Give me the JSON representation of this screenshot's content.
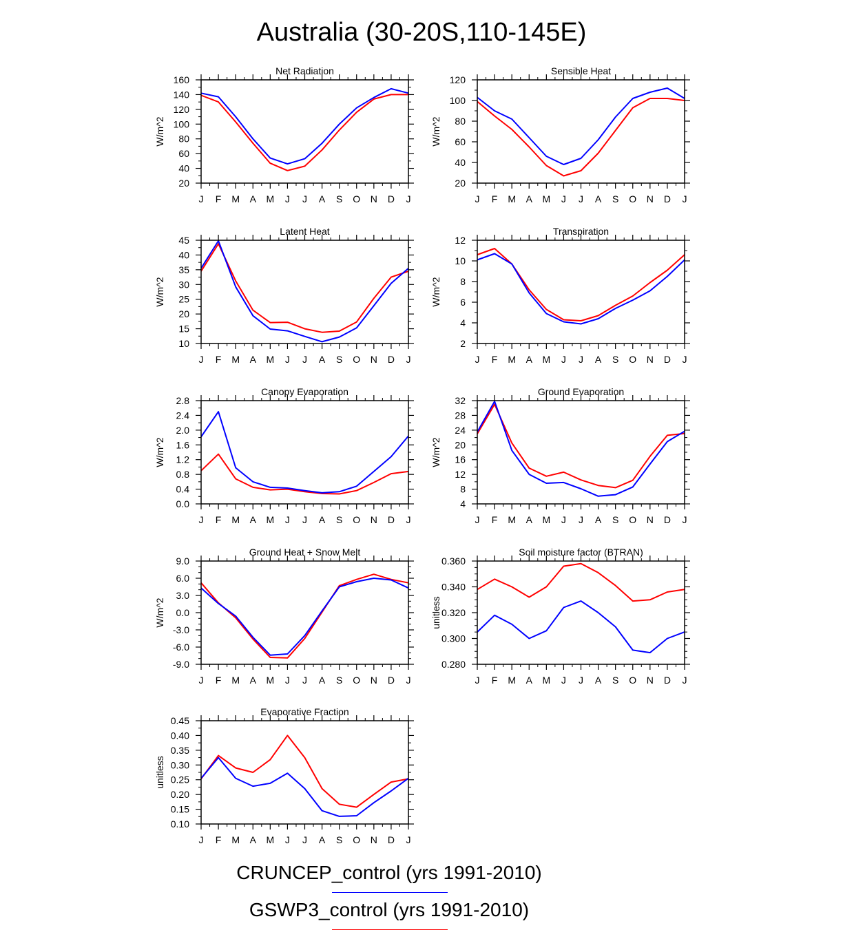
{
  "figure": {
    "title": "Australia (30-20S,110-145E)"
  },
  "legend": [
    {
      "label": "CRUNCEP_control (yrs 1991-2010)",
      "color": "#0000ff"
    },
    {
      "label": "GSWP3_control (yrs 1991-2010)",
      "color": "#ff0000"
    }
  ],
  "chart_data": [
    {
      "type": "line",
      "title": "Net Radiation",
      "ylabel": "W/m^2",
      "categories": [
        "J",
        "F",
        "M",
        "A",
        "M",
        "J",
        "J",
        "A",
        "S",
        "O",
        "N",
        "D",
        "J"
      ],
      "ylim": [
        20,
        160
      ],
      "yticks": [
        "20",
        "40",
        "60",
        "80",
        "100",
        "120",
        "140",
        "160"
      ],
      "yminor": 1,
      "series": [
        {
          "name": "CRUNCEP_control",
          "color": "#0000ff",
          "values": [
            142,
            137,
            110,
            80,
            54,
            46,
            53,
            74,
            100,
            122,
            136,
            148,
            142
          ]
        },
        {
          "name": "GSWP3_control",
          "color": "#ff0000",
          "values": [
            139,
            130,
            103,
            74,
            47,
            37,
            43,
            65,
            92,
            116,
            134,
            140,
            140
          ]
        }
      ]
    },
    {
      "type": "line",
      "title": "Sensible Heat",
      "ylabel": "W/m^2",
      "categories": [
        "J",
        "F",
        "M",
        "A",
        "M",
        "J",
        "J",
        "A",
        "S",
        "O",
        "N",
        "D",
        "J"
      ],
      "ylim": [
        20,
        120
      ],
      "yticks": [
        "20",
        "40",
        "60",
        "80",
        "100",
        "120"
      ],
      "yminor": 1,
      "series": [
        {
          "name": "CRUNCEP_control",
          "color": "#0000ff",
          "values": [
            103,
            90,
            82,
            64,
            46,
            38,
            44,
            62,
            84,
            102,
            108,
            112,
            102
          ]
        },
        {
          "name": "GSWP3_control",
          "color": "#ff0000",
          "values": [
            99,
            85,
            72,
            55,
            37,
            27,
            32,
            49,
            71,
            93,
            102,
            102,
            100
          ]
        }
      ]
    },
    {
      "type": "line",
      "title": "Latent Heat",
      "ylabel": "W/m^2",
      "categories": [
        "J",
        "F",
        "M",
        "A",
        "M",
        "J",
        "J",
        "A",
        "S",
        "O",
        "N",
        "D",
        "J"
      ],
      "ylim": [
        10,
        45
      ],
      "yticks": [
        "10",
        "15",
        "20",
        "25",
        "30",
        "35",
        "40",
        "45"
      ],
      "yminor": 1,
      "series": [
        {
          "name": "CRUNCEP_control",
          "color": "#0000ff",
          "values": [
            35.5,
            44.8,
            29.2,
            19.4,
            14.9,
            14.3,
            12.4,
            10.6,
            12.2,
            15.3,
            22.8,
            30.4,
            35.5
          ]
        },
        {
          "name": "GSWP3_control",
          "color": "#ff0000",
          "values": [
            34.5,
            43.8,
            31.2,
            21.3,
            17.1,
            17.2,
            15.0,
            13.8,
            14.2,
            17.3,
            25.3,
            32.5,
            34.5
          ]
        }
      ]
    },
    {
      "type": "line",
      "title": "Transpiration",
      "ylabel": "W/m^2",
      "categories": [
        "J",
        "F",
        "M",
        "A",
        "M",
        "J",
        "J",
        "A",
        "S",
        "O",
        "N",
        "D",
        "J"
      ],
      "ylim": [
        2,
        12
      ],
      "yticks": [
        "2",
        "4",
        "6",
        "8",
        "10",
        "12"
      ],
      "yminor": 1,
      "series": [
        {
          "name": "CRUNCEP_control",
          "color": "#0000ff",
          "values": [
            10.1,
            10.7,
            9.7,
            6.9,
            4.9,
            4.1,
            3.9,
            4.4,
            5.4,
            6.2,
            7.1,
            8.5,
            10.1
          ]
        },
        {
          "name": "GSWP3_control",
          "color": "#ff0000",
          "values": [
            10.6,
            11.2,
            9.7,
            7.2,
            5.3,
            4.3,
            4.2,
            4.7,
            5.7,
            6.6,
            7.9,
            9.1,
            10.6
          ]
        }
      ]
    },
    {
      "type": "line",
      "title": "Canopy Evaporation",
      "ylabel": "W/m^2",
      "categories": [
        "J",
        "F",
        "M",
        "A",
        "M",
        "J",
        "J",
        "A",
        "S",
        "O",
        "N",
        "D",
        "J"
      ],
      "ylim": [
        0.0,
        2.8
      ],
      "yticks": [
        "0.0",
        "0.4",
        "0.8",
        "1.2",
        "1.6",
        "2.0",
        "2.4",
        "2.8"
      ],
      "yminor": 1,
      "series": [
        {
          "name": "CRUNCEP_control",
          "color": "#0000ff",
          "values": [
            1.82,
            2.5,
            0.98,
            0.6,
            0.45,
            0.43,
            0.36,
            0.3,
            0.33,
            0.48,
            0.88,
            1.28,
            1.84
          ]
        },
        {
          "name": "GSWP3_control",
          "color": "#ff0000",
          "values": [
            0.9,
            1.35,
            0.68,
            0.45,
            0.38,
            0.4,
            0.33,
            0.28,
            0.27,
            0.36,
            0.58,
            0.82,
            0.88
          ]
        }
      ]
    },
    {
      "type": "line",
      "title": "Ground Evaporation",
      "ylabel": "W/m^2",
      "categories": [
        "J",
        "F",
        "M",
        "A",
        "M",
        "J",
        "J",
        "A",
        "S",
        "O",
        "N",
        "D",
        "J"
      ],
      "ylim": [
        4,
        32
      ],
      "yticks": [
        "4",
        "8",
        "12",
        "16",
        "20",
        "24",
        "28",
        "32"
      ],
      "yminor": 1,
      "series": [
        {
          "name": "CRUNCEP_control",
          "color": "#0000ff",
          "values": [
            23.5,
            31.8,
            18.5,
            12.0,
            9.6,
            9.8,
            8.1,
            6.1,
            6.5,
            8.6,
            14.8,
            20.9,
            23.7
          ]
        },
        {
          "name": "GSWP3_control",
          "color": "#ff0000",
          "values": [
            23.0,
            31.0,
            20.5,
            13.7,
            11.5,
            12.6,
            10.5,
            9.0,
            8.4,
            10.4,
            16.9,
            22.6,
            23.1
          ]
        }
      ]
    },
    {
      "type": "line",
      "title": "Ground Heat + Snow Melt",
      "ylabel": "W/m^2",
      "categories": [
        "J",
        "F",
        "M",
        "A",
        "M",
        "J",
        "J",
        "A",
        "S",
        "O",
        "N",
        "D",
        "J"
      ],
      "ylim": [
        -9,
        9
      ],
      "yticks": [
        "-9.0",
        "-6.0",
        "-3.0",
        "0.0",
        "3.0",
        "6.0",
        "9.0"
      ],
      "yminor": 2,
      "series": [
        {
          "name": "CRUNCEP_control",
          "color": "#0000ff",
          "values": [
            4.3,
            1.6,
            -0.6,
            -4.3,
            -7.4,
            -7.2,
            -4.0,
            0.3,
            4.5,
            5.4,
            6.0,
            5.7,
            4.3
          ]
        },
        {
          "name": "GSWP3_control",
          "color": "#ff0000",
          "values": [
            5.2,
            1.7,
            -0.9,
            -4.6,
            -7.8,
            -7.9,
            -4.5,
            0.1,
            4.7,
            5.8,
            6.7,
            5.8,
            5.2
          ]
        }
      ]
    },
    {
      "type": "line",
      "title": "Soil moisture factor (BTRAN)",
      "ylabel": "unitless",
      "categories": [
        "J",
        "F",
        "M",
        "A",
        "M",
        "J",
        "J",
        "A",
        "S",
        "O",
        "N",
        "D",
        "J"
      ],
      "ylim": [
        0.28,
        0.36
      ],
      "yticks": [
        "0.280",
        "0.300",
        "0.320",
        "0.340",
        "0.360"
      ],
      "yminor": 3,
      "series": [
        {
          "name": "CRUNCEP_control",
          "color": "#0000ff",
          "values": [
            0.305,
            0.318,
            0.311,
            0.3,
            0.306,
            0.324,
            0.329,
            0.32,
            0.309,
            0.291,
            0.289,
            0.3,
            0.305
          ]
        },
        {
          "name": "GSWP3_control",
          "color": "#ff0000",
          "values": [
            0.338,
            0.346,
            0.34,
            0.332,
            0.34,
            0.356,
            0.358,
            0.351,
            0.341,
            0.329,
            0.33,
            0.336,
            0.338
          ]
        }
      ]
    },
    {
      "type": "line",
      "title": "Evaporative Fraction",
      "ylabel": "unitless",
      "categories": [
        "J",
        "F",
        "M",
        "A",
        "M",
        "J",
        "J",
        "A",
        "S",
        "O",
        "N",
        "D",
        "J"
      ],
      "ylim": [
        0.1,
        0.45
      ],
      "yticks": [
        "0.10",
        "0.15",
        "0.20",
        "0.25",
        "0.30",
        "0.35",
        "0.40",
        "0.45"
      ],
      "yminor": 1,
      "series": [
        {
          "name": "CRUNCEP_control",
          "color": "#0000ff",
          "values": [
            0.255,
            0.325,
            0.255,
            0.228,
            0.238,
            0.272,
            0.22,
            0.145,
            0.126,
            0.128,
            0.172,
            0.212,
            0.255
          ]
        },
        {
          "name": "GSWP3_control",
          "color": "#ff0000",
          "values": [
            0.253,
            0.332,
            0.29,
            0.275,
            0.318,
            0.4,
            0.325,
            0.22,
            0.167,
            0.157,
            0.2,
            0.242,
            0.253
          ]
        }
      ]
    }
  ]
}
